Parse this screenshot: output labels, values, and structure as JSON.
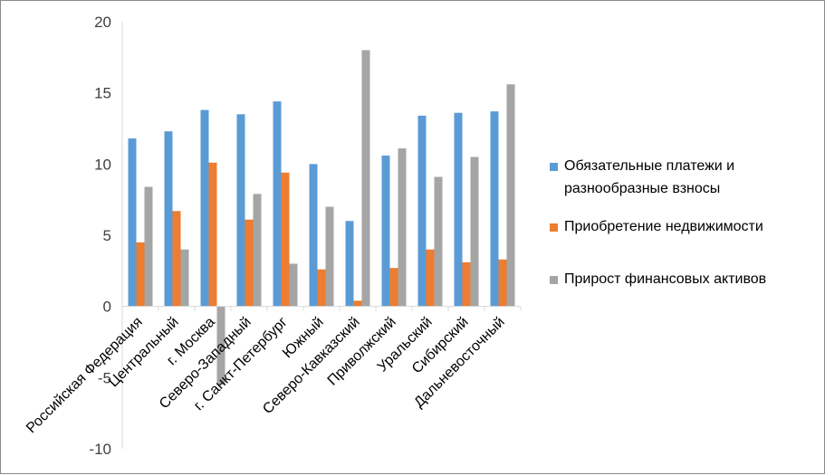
{
  "chart_data": {
    "type": "bar",
    "categories": [
      "Российская Федерация",
      "Центральный",
      "г. Москва",
      "Северо-Западный",
      "г. Санкт-Петербург",
      "Южный",
      "Северо-Кавказский",
      "Приволжский",
      "Уральский",
      "Сибирский",
      "Дальневосточный"
    ],
    "series": [
      {
        "name": "Обязательные платежи и разнообразные взносы",
        "color": "#5b9bd5",
        "values": [
          11.8,
          12.3,
          13.8,
          13.5,
          14.4,
          10.0,
          6.0,
          10.6,
          13.4,
          13.6,
          13.7
        ]
      },
      {
        "name": "Приобретение недвижимости",
        "color": "#ed7d31",
        "values": [
          4.5,
          6.7,
          10.1,
          6.1,
          9.4,
          2.6,
          0.4,
          2.7,
          4.0,
          3.1,
          3.3
        ]
      },
      {
        "name": "Прирост финансовых активов",
        "color": "#a5a5a5",
        "values": [
          8.4,
          4.0,
          -5.5,
          7.9,
          3.0,
          7.0,
          18.0,
          11.1,
          9.1,
          10.5,
          15.6
        ]
      }
    ],
    "ylim": [
      -10,
      20
    ],
    "yticks": [
      -10,
      -5,
      0,
      5,
      10,
      15,
      20
    ],
    "grid": false,
    "legend_position": "right",
    "axis_color": "#d9d9d9"
  },
  "legend": {
    "items": [
      {
        "label_lines": [
          "Обязательные платежи и",
          "разнообразные взносы"
        ]
      },
      {
        "label_lines": [
          "Приобретение недвижимости"
        ]
      },
      {
        "label_lines": [
          "Прирост финансовых активов"
        ]
      }
    ]
  }
}
